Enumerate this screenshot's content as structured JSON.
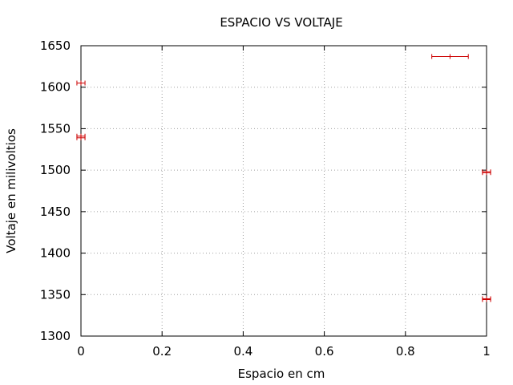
{
  "chart_data": {
    "type": "scatter",
    "title": "ESPACIO VS VOLTAJE",
    "xlabel": "Espacio en cm",
    "ylabel": "Voltaje en milivoltios",
    "xlim": [
      0,
      1
    ],
    "ylim": [
      1300,
      1650
    ],
    "xticks": [
      0,
      0.2,
      0.4,
      0.6,
      0.8,
      1
    ],
    "xtick_labels": [
      "0",
      "0.2",
      "0.4",
      "0.6",
      "0.8",
      "1"
    ],
    "yticks": [
      1300,
      1350,
      1400,
      1450,
      1500,
      1550,
      1600,
      1650
    ],
    "ytick_labels": [
      "1300",
      "1350",
      "1400",
      "1450",
      "1500",
      "1550",
      "1600",
      "1650"
    ],
    "grid": true,
    "color": "#cc0000",
    "points": [
      {
        "x": 0.91,
        "y": 1637,
        "xerr": 0.045
      },
      {
        "x": 0,
        "y": 1605,
        "xerr": 0.01
      },
      {
        "x": 0,
        "y": 1541,
        "xerr": 0.01
      },
      {
        "x": 0,
        "y": 1539,
        "xerr": 0.01
      },
      {
        "x": 1,
        "y": 1498,
        "xerr": 0.01
      },
      {
        "x": 1,
        "y": 1497,
        "xerr": 0.01
      },
      {
        "x": 1,
        "y": 1345,
        "xerr": 0.01
      },
      {
        "x": 1,
        "y": 1344,
        "xerr": 0.01
      }
    ]
  }
}
